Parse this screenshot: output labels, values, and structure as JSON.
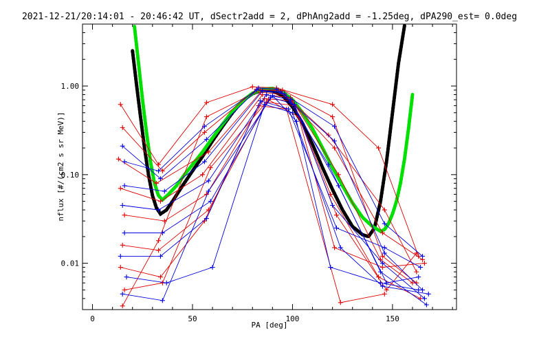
{
  "chart_data": {
    "type": "line",
    "title": "2021-12-21/20:14:01 - 20:46:42 UT, dSectr2add = 2, dPhAng2add = -1.25deg, dPA290_est=   0.0deg",
    "xlabel": "PA [deg]",
    "ylabel": "nflux [#/(cm2 s sr MeV)]",
    "xlim": [
      -5,
      182
    ],
    "ylim": [
      0.003,
      5.0
    ],
    "yscale": "log",
    "x_ticks": [
      0,
      50,
      100,
      150
    ],
    "x_tick_labels": [
      "0",
      "50",
      "100",
      "150"
    ],
    "y_ticks": [
      0.01,
      0.1,
      1.0
    ],
    "y_tick_labels": [
      "0.01",
      "0.10",
      "1.00"
    ],
    "grid": false,
    "colors": {
      "red_traces": "#e00000",
      "blue_traces": "#0000e0",
      "black_fit": "#000000",
      "green_fit": "#00e000"
    },
    "series": [
      {
        "color": "black",
        "style": "thick-dashed",
        "x": [
          20,
          22,
          24,
          26,
          28,
          30,
          32,
          34,
          37,
          40,
          45,
          50,
          55,
          60,
          65,
          70,
          75,
          80,
          85,
          90,
          95,
          100,
          105,
          110,
          115,
          120,
          125,
          130,
          135,
          138,
          141,
          144,
          147,
          150,
          153,
          156
        ],
        "y": [
          2.5,
          1.05,
          0.45,
          0.2,
          0.1,
          0.058,
          0.042,
          0.036,
          0.04,
          0.05,
          0.075,
          0.11,
          0.16,
          0.24,
          0.35,
          0.5,
          0.68,
          0.82,
          0.9,
          0.88,
          0.78,
          0.58,
          0.38,
          0.22,
          0.12,
          0.068,
          0.04,
          0.026,
          0.021,
          0.02,
          0.025,
          0.05,
          0.14,
          0.5,
          1.8,
          4.8
        ]
      },
      {
        "color": "green",
        "style": "thick-dashed",
        "x": [
          21,
          23,
          25,
          27,
          29,
          31,
          33,
          35,
          38,
          42,
          46,
          50,
          55,
          60,
          65,
          70,
          75,
          80,
          85,
          90,
          95,
          100,
          105,
          110,
          115,
          120,
          125,
          130,
          135,
          140,
          144,
          146,
          148,
          150,
          152,
          154,
          156,
          158,
          160
        ],
        "y": [
          4.7,
          1.8,
          0.7,
          0.3,
          0.14,
          0.08,
          0.058,
          0.052,
          0.06,
          0.075,
          0.1,
          0.13,
          0.18,
          0.26,
          0.37,
          0.52,
          0.68,
          0.83,
          0.92,
          0.94,
          0.86,
          0.7,
          0.5,
          0.33,
          0.2,
          0.12,
          0.075,
          0.048,
          0.033,
          0.026,
          0.023,
          0.024,
          0.028,
          0.036,
          0.05,
          0.08,
          0.15,
          0.33,
          0.8
        ]
      },
      {
        "color": "red",
        "style": "line-plus",
        "x": [
          14,
          33,
          57,
          80,
          92,
          120,
          143,
          163
        ],
        "y": [
          0.62,
          0.13,
          0.65,
          0.98,
          0.95,
          0.62,
          0.2,
          0.012
        ]
      },
      {
        "color": "red",
        "style": "line-plus",
        "x": [
          15,
          35,
          56,
          82,
          94,
          118,
          146,
          162
        ],
        "y": [
          0.34,
          0.11,
          0.3,
          0.92,
          0.88,
          0.28,
          0.04,
          0.008
        ]
      },
      {
        "color": "red",
        "style": "line-plus",
        "x": [
          13,
          32,
          58,
          84,
          96,
          121,
          145,
          165
        ],
        "y": [
          0.15,
          0.08,
          0.18,
          0.85,
          0.8,
          0.2,
          0.022,
          0.011
        ]
      },
      {
        "color": "red",
        "style": "line-plus",
        "x": [
          14,
          34,
          55,
          85,
          99,
          123,
          144,
          160
        ],
        "y": [
          0.07,
          0.05,
          0.1,
          0.8,
          0.74,
          0.1,
          0.011,
          0.006
        ]
      },
      {
        "color": "red",
        "style": "line-plus",
        "x": [
          16,
          36,
          57,
          86,
          100,
          119,
          143,
          164
        ],
        "y": [
          0.035,
          0.03,
          0.06,
          0.72,
          0.68,
          0.06,
          0.007,
          0.004
        ]
      },
      {
        "color": "red",
        "style": "line-plus",
        "x": [
          15,
          33,
          58,
          87,
          101,
          122,
          147,
          162
        ],
        "y": [
          0.016,
          0.014,
          0.04,
          0.66,
          0.6,
          0.035,
          0.005,
          0.013
        ]
      },
      {
        "color": "red",
        "style": "line-plus",
        "x": [
          14,
          34,
          56,
          83,
          97,
          124,
          146
        ],
        "y": [
          0.009,
          0.007,
          0.03,
          0.6,
          0.55,
          0.0036,
          0.0045
        ]
      },
      {
        "color": "red",
        "style": "line-plus",
        "x": [
          16,
          35,
          59,
          88,
          103,
          121,
          145,
          166
        ],
        "y": [
          0.005,
          0.006,
          0.12,
          0.7,
          0.45,
          0.015,
          0.009,
          0.01
        ]
      },
      {
        "color": "red",
        "style": "line-plus",
        "x": [
          15,
          33,
          57,
          84,
          95,
          120,
          145,
          162
        ],
        "y": [
          0.0033,
          0.018,
          0.45,
          0.9,
          0.9,
          0.45,
          0.012,
          0.006
        ]
      },
      {
        "color": "blue",
        "style": "line-plus",
        "x": [
          15,
          34,
          57,
          83,
          92,
          121,
          146,
          165
        ],
        "y": [
          0.21,
          0.09,
          0.25,
          0.95,
          0.92,
          0.24,
          0.013,
          0.005
        ]
      },
      {
        "color": "blue",
        "style": "line-plus",
        "x": [
          16,
          36,
          56,
          85,
          96,
          118,
          144,
          167
        ],
        "y": [
          0.075,
          0.065,
          0.14,
          0.88,
          0.82,
          0.13,
          0.008,
          0.0034
        ]
      },
      {
        "color": "blue",
        "style": "line-plus",
        "x": [
          15,
          33,
          58,
          87,
          99,
          123,
          147,
          163
        ],
        "y": [
          0.045,
          0.04,
          0.085,
          0.8,
          0.7,
          0.075,
          0.006,
          0.007
        ]
      },
      {
        "color": "blue",
        "style": "line-plus",
        "x": [
          16,
          35,
          59,
          89,
          101,
          120,
          145,
          166
        ],
        "y": [
          0.022,
          0.022,
          0.05,
          0.75,
          0.62,
          0.045,
          0.01,
          0.004
        ]
      },
      {
        "color": "blue",
        "style": "line-plus",
        "x": [
          14,
          34,
          57,
          84,
          98,
          122,
          146,
          164
        ],
        "y": [
          0.012,
          0.012,
          0.032,
          0.68,
          0.55,
          0.025,
          0.015,
          0.009
        ]
      },
      {
        "color": "blue",
        "style": "line-plus",
        "x": [
          17,
          37,
          60,
          86,
          100,
          124,
          145,
          168
        ],
        "y": [
          0.007,
          0.006,
          0.009,
          0.62,
          0.5,
          0.015,
          0.0055,
          0.0045
        ]
      },
      {
        "color": "blue",
        "style": "line-plus",
        "x": [
          15,
          35,
          58,
          90,
          102,
          119,
          144,
          163
        ],
        "y": [
          0.0045,
          0.0038,
          0.065,
          0.78,
          0.4,
          0.009,
          0.006,
          0.005
        ]
      },
      {
        "color": "blue",
        "style": "line-plus",
        "x": [
          16,
          33,
          56,
          82,
          94,
          121,
          146,
          165
        ],
        "y": [
          0.14,
          0.11,
          0.35,
          0.9,
          0.86,
          0.35,
          0.028,
          0.012
        ]
      }
    ]
  }
}
